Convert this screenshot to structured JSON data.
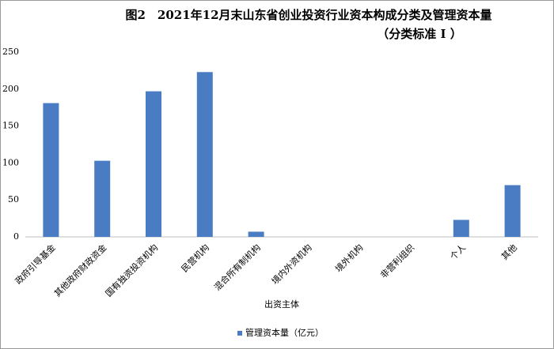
{
  "chart_data": {
    "type": "bar",
    "title": "图2　2021年12月末山东省创业投资行业资本构成分类及管理资本量",
    "subtitle": "（分类标准 I ）",
    "x_label": "出资主体",
    "categories": [
      "政府引导基金",
      "其他政府财政资金",
      "国有独资投资机构",
      "民营机构",
      "混合所有制机构",
      "境内外资机构",
      "境外机构",
      "非营利组织",
      "个人",
      "其他"
    ],
    "series": [
      {
        "name": "管理资本量（亿元）",
        "color": "#4a7cc4",
        "values": [
          181,
          103,
          197,
          223,
          7,
          0,
          0,
          0,
          23,
          70
        ]
      }
    ],
    "ylim": [
      0,
      250
    ],
    "yticks": [
      0,
      50,
      100,
      150,
      200,
      250
    ],
    "grid": false,
    "legend": "bottom"
  }
}
